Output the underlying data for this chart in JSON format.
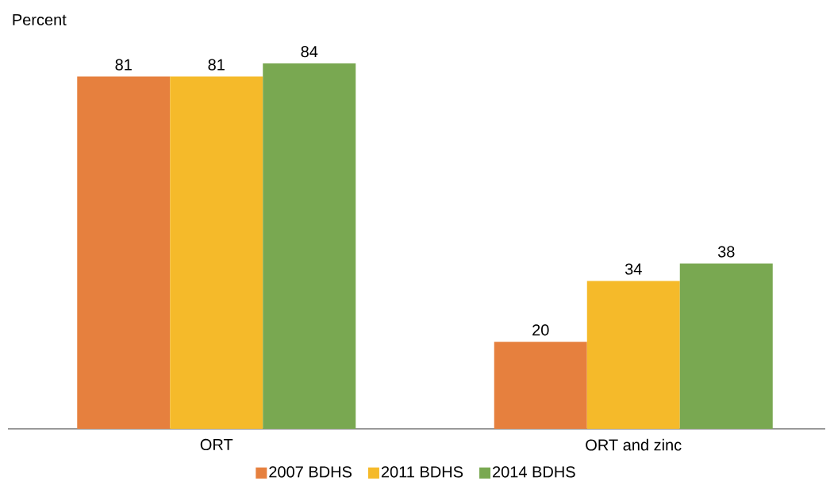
{
  "chart_data": {
    "type": "bar",
    "ylabel": "Percent",
    "categories": [
      "ORT",
      "ORT and zinc"
    ],
    "series": [
      {
        "name": "2007 BDHS",
        "color": "#e6803e",
        "values": [
          81,
          20
        ]
      },
      {
        "name": "2011 BDHS",
        "color": "#f5ba2a",
        "values": [
          81,
          34
        ]
      },
      {
        "name": "2014 BDHS",
        "color": "#79a851",
        "values": [
          84,
          38
        ]
      }
    ],
    "data_labels": true,
    "legend": "bottom"
  }
}
